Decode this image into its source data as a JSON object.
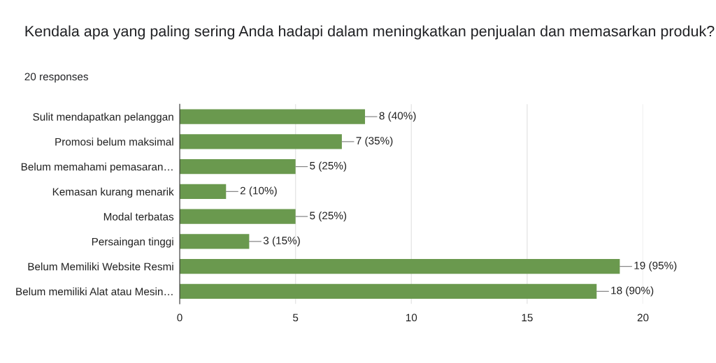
{
  "chart_data": {
    "type": "bar",
    "orientation": "horizontal",
    "title": "Kendala apa yang paling sering Anda hadapi dalam meningkatkan penjualan dan memasarkan produk?",
    "subtitle": "20 responses",
    "categories": [
      "Sulit mendapatkan pelanggan",
      "Promosi belum maksimal",
      "Belum memahami pemasaran…",
      "Kemasan kurang menarik",
      "Modal terbatas",
      "Persaingan tinggi",
      "Belum Memiliki Website Resmi",
      "Belum memiliki Alat atau Mesin…"
    ],
    "values": [
      8,
      7,
      5,
      2,
      5,
      3,
      19,
      18
    ],
    "value_labels": [
      "8 (40%)",
      "7 (35%)",
      "5 (25%)",
      "2 (10%)",
      "5 (25%)",
      "3 (15%)",
      "19 (95%)",
      "18 (90%)"
    ],
    "color": "#6a994e",
    "xlim": [
      0,
      20
    ],
    "xticks": [
      0,
      5,
      10,
      15,
      20
    ],
    "grid": "x"
  }
}
